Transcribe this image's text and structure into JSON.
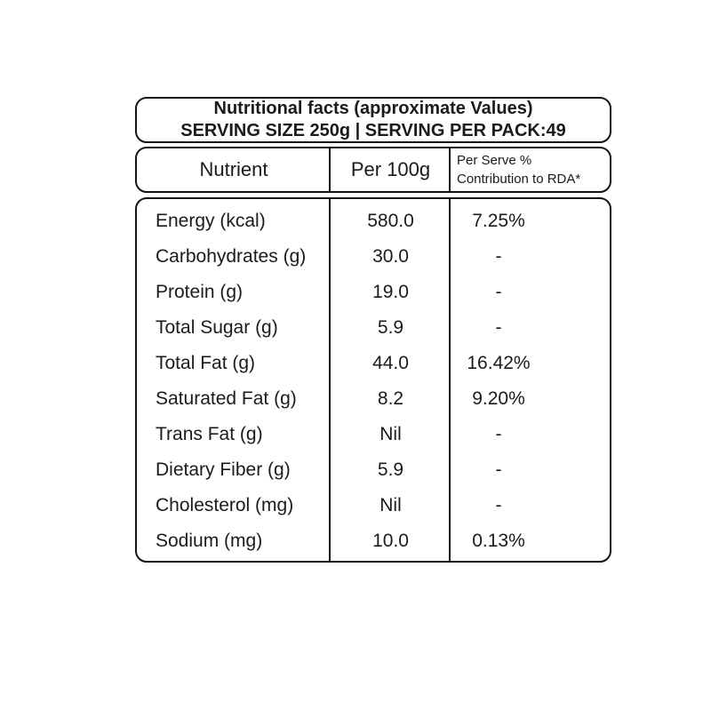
{
  "label": {
    "title": "Nutritional facts (approximate Values)",
    "serving_info": "SERVING SIZE 250g | SERVING PER PACK:49"
  },
  "table": {
    "columns": [
      "Nutrient",
      "Per 100g",
      "Per Serve % Contribution to RDA*"
    ],
    "rda_header_lines": [
      "Per Serve %",
      "Contribution to RDA*"
    ],
    "rows": [
      {
        "nutrient": "Energy (kcal)",
        "per_100g": "580.0",
        "rda": "7.25%"
      },
      {
        "nutrient": "Carbohydrates (g)",
        "per_100g": "30.0",
        "rda": "-"
      },
      {
        "nutrient": "Protein (g)",
        "per_100g": "19.0",
        "rda": "-"
      },
      {
        "nutrient": "Total Sugar (g)",
        "per_100g": "5.9",
        "rda": "-"
      },
      {
        "nutrient": "Total Fat (g)",
        "per_100g": "44.0",
        "rda": "16.42%"
      },
      {
        "nutrient": "Saturated Fat (g)",
        "per_100g": "8.2",
        "rda": "9.20%"
      },
      {
        "nutrient": "Trans Fat (g)",
        "per_100g": "Nil",
        "rda": "-"
      },
      {
        "nutrient": "Dietary Fiber (g)",
        "per_100g": "5.9",
        "rda": "-"
      },
      {
        "nutrient": "Cholesterol (mg)",
        "per_100g": "Nil",
        "rda": "-"
      },
      {
        "nutrient": "Sodium (mg)",
        "per_100g": "10.0",
        "rda": "0.13%"
      }
    ]
  },
  "colors": {
    "border": "#141414",
    "text": "#1b1b1b",
    "background": "#ffffff"
  }
}
